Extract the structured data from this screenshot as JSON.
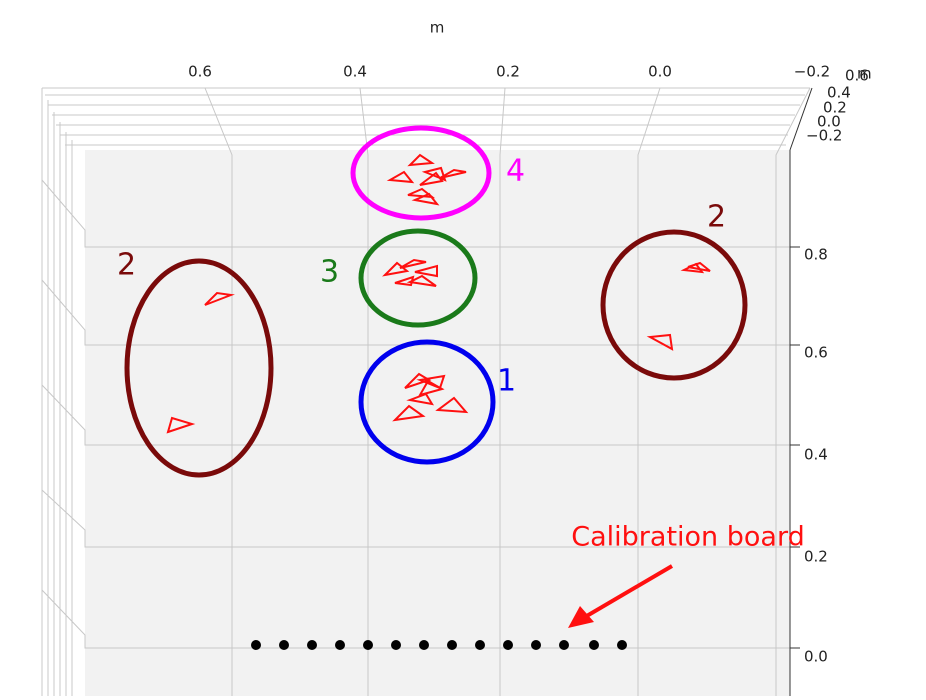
{
  "axis_label_top": "m",
  "top_ticks": [
    "0.6",
    "0.4",
    "0.2",
    "0.0",
    "−0.2"
  ],
  "right_ticks": [
    "0.8",
    "0.6",
    "0.4",
    "0.2",
    "0.0"
  ],
  "corner_ticks": [
    "0.6",
    "0.4",
    "0.2",
    "0.0",
    "−0.2"
  ],
  "corner_unit": "m",
  "annotations": [
    "4",
    "3",
    "1",
    "2",
    "2"
  ],
  "callout": "Calibration board"
}
